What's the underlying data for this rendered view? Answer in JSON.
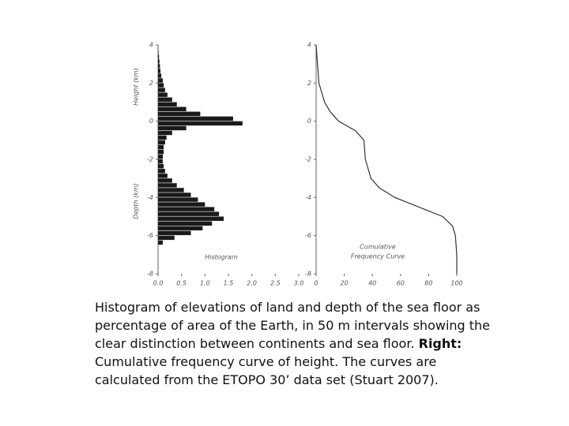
{
  "chart_data": [
    {
      "type": "histogram",
      "orientation": "horizontal",
      "color": "#1a1a1a",
      "ylabels": [
        "Height (km)",
        "Depth (km)"
      ],
      "annotations": [
        "Histogram"
      ],
      "bins": [
        -8,
        -7.75,
        -7.5,
        -7.25,
        -7,
        -6.75,
        -6.5,
        -6.25,
        -6,
        -5.75,
        -5.5,
        -5.25,
        -5,
        -4.75,
        -4.5,
        -4.25,
        -4,
        -3.75,
        -3.5,
        -3.25,
        -3,
        -2.75,
        -2.5,
        -2.25,
        -2,
        -1.75,
        -1.5,
        -1.25,
        -1,
        -0.75,
        -0.5,
        -0.25,
        0,
        0.25,
        0.5,
        0.75,
        1,
        1.25,
        1.5,
        1.75,
        2,
        2.25,
        2.5,
        2.75,
        3,
        3.25,
        3.5,
        3.75,
        4
      ],
      "values": [
        0,
        0,
        0,
        0,
        0,
        0,
        0.1,
        0.35,
        0.7,
        0.95,
        1.15,
        1.4,
        1.3,
        1.2,
        1.0,
        0.85,
        0.7,
        0.55,
        0.4,
        0.3,
        0.2,
        0.15,
        0.12,
        0.1,
        0.1,
        0.12,
        0.12,
        0.15,
        0.18,
        0.3,
        0.6,
        1.8,
        1.6,
        0.9,
        0.6,
        0.4,
        0.3,
        0.2,
        0.15,
        0.12,
        0.1,
        0.07,
        0.05,
        0.04,
        0.03,
        0.02,
        0.01,
        0.005
      ],
      "xlim": [
        0,
        3
      ],
      "xticks": [
        {
          "value": 0,
          "label": "0.0"
        },
        {
          "value": 0.5,
          "label": "0.5"
        },
        {
          "value": 1,
          "label": "1.0"
        },
        {
          "value": 1.5,
          "label": "1.5"
        },
        {
          "value": 2,
          "label": "2.0"
        },
        {
          "value": 2.5,
          "label": "2.5"
        },
        {
          "value": 3,
          "label": "3.0"
        }
      ],
      "ylim": [
        -8,
        4
      ],
      "yticks": [
        4,
        2,
        0,
        -2,
        -4,
        -6,
        -8
      ]
    },
    {
      "type": "line",
      "color": "#333333",
      "annotations": [
        "Cumulative",
        "Frequency Curve"
      ],
      "x": [
        0,
        1,
        2,
        6,
        10,
        16,
        28,
        34,
        35,
        39,
        45,
        56,
        73,
        90,
        97,
        99,
        100,
        100
      ],
      "values": [
        4,
        3,
        2,
        1,
        0.5,
        0,
        -0.5,
        -1,
        -2,
        -3,
        -3.5,
        -4,
        -4.5,
        -5,
        -5.5,
        -6,
        -7,
        -8
      ],
      "xlim": [
        0,
        100
      ],
      "xticks": [
        0,
        20,
        40,
        60,
        80,
        100
      ],
      "ylim": [
        -8,
        4
      ],
      "yticks": [
        4,
        2,
        0,
        -2,
        -4,
        -6,
        -8
      ]
    }
  ],
  "caption": {
    "text1": "Histogram of elevations of land and depth of the sea floor as percentage of area of the Earth, in 50 m intervals showing the clear distinction between continents and sea floor.",
    "bold": "Right:",
    "text2": "Cumulative frequency curve of height. The curves are calculated from the ETOPO 30’ data set (Stuart 2007)."
  }
}
